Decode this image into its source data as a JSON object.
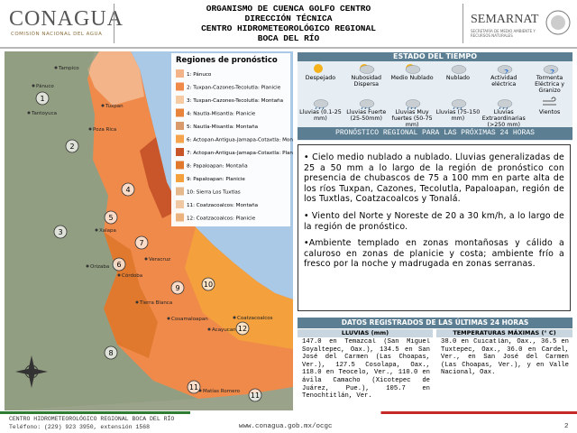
{
  "header": {
    "logo": "CONAGUA",
    "logo_sub": "COMISIÓN NACIONAL DEL AGUA",
    "title_lines": [
      "ORGANISMO DE CUENCA GOLFO CENTRO",
      "DIRECCIÓN TÉCNICA",
      "CENTRO HIDROMETEOROLÓGICO REGIONAL",
      "BOCA DEL RÍO"
    ],
    "semarnat": "SEMARNAT",
    "semarnat_sub": "SECRETARÍA DE MEDIO AMBIENTE Y RECURSOS NATURALES"
  },
  "map": {
    "legend_title": "Regiones de pronóstico",
    "legend": [
      {
        "label": "1: Pánuco",
        "color": "#f3b48a"
      },
      {
        "label": "2: Tuxpan-Cazones-Tecolutla: Planicie",
        "color": "#f08a4b"
      },
      {
        "label": "3: Tuxpan-Cazones-Tecolutla: Montaña",
        "color": "#f6caa2"
      },
      {
        "label": "4: Nautla-Misantla: Planicie",
        "color": "#e9843c"
      },
      {
        "label": "5: Nautla-Misantla: Montaña",
        "color": "#d99a6c"
      },
      {
        "label": "6: Actopan-Antigua-Jamapa-Cotaxtla: Montaña",
        "color": "#f5a34d"
      },
      {
        "label": "7: Actopan-Antigua-Jamapa-Cotaxtla: Planicie",
        "color": "#c8562a"
      },
      {
        "label": "8: Papaloapan: Montaña",
        "color": "#e0792e"
      },
      {
        "label": "9: Papaloapan: Planicie",
        "color": "#f4a03c"
      },
      {
        "label": "10: Sierra Los Tuxtlas",
        "color": "#e6b98c"
      },
      {
        "label": "11: Coatzacoalcos: Montaña",
        "color": "#f0c9a4"
      },
      {
        "label": "12: Coatzacoalcos: Planicie",
        "color": "#ecb27e"
      }
    ],
    "markers": [
      "1",
      "2",
      "3",
      "4",
      "5",
      "6",
      "7",
      "8",
      "9",
      "10",
      "11",
      "12",
      "11"
    ],
    "places": [
      "Tampico",
      "Pánuco",
      "Tantoyuca",
      "Tuxpan",
      "Poza Rica",
      "Xalapa",
      "Veracruz",
      "Orizaba",
      "Córdoba",
      "Tierra Blanca",
      "Cosamaloapan",
      "Coatzacoalcos",
      "Acayucan",
      "Matías Romero"
    ]
  },
  "weather": {
    "title": "ESTADO DEL TIEMPO",
    "items": [
      "Despejado",
      "Nubosidad Dispersa",
      "Medio Nublado",
      "Nublado",
      "Actividad eléctrica",
      "Tormenta Eléctrica y Granizo",
      "Lluvias (0.1-25 mm)",
      "Lluvias Fuerte (25-50mm)",
      "Lluvias Muy fuertes (50-75 mm)",
      "Lluvias (75-150 mm)",
      "Lluvias Extraordinarias (>250 mm)",
      "Vientos"
    ],
    "forecast_title": "PRONÓSTICO REGIONAL PARA LAS PRÓXIMAS 24 HORAS"
  },
  "forecast": [
    "• Cielo medio nublado a nublado. Lluvias generalizadas de 25 a 50 mm a lo largo de la región de pronóstico con presencia de chubascos de 75 a 100 mm en parte alta de los ríos Tuxpan, Cazones, Tecolutla, Papaloapan, región de los Tuxtlas, Coatzacoalcos y Tonalá.",
    "• Viento del Norte y Noreste de 20 a 30 km/h, a lo largo de la región de pronóstico.",
    "•Ambiente templado en zonas montañosas y cálido a caluroso en zonas de planicie y costa; ambiente frío a fresco por la noche y madrugada en zonas serranas."
  ],
  "records": {
    "title": "DATOS REGISTRADOS DE LAS ÚLTIMAS 24 HORAS",
    "rain_header": "LLUVIAS (mm)",
    "temp_header": "TEMPERATURAS MÁXIMAS (° C)",
    "rain": "147.0 en Temazcal (San Miguel Soyaltepec, Oax.), 134.5 en San José del Carmen (Las Choapas, Ver.), 127.5 Cosolapa, Oax., 118.0 en Teocelo, Ver., 110.0 en ávila Camacho (Xicotepec de Juárez, Pue.), 105.7 en Tenochtitlán, Ver.",
    "temp": "38.0 en Cuicatlán, Oax., 36.5 en Tuxtepec, Oax., 36.0 en Cardel, Ver., en San José del Carmen (Las Choapas, Ver.), y en Valle Nacional, Oax."
  },
  "footer": {
    "center": "CENTRO HIDROMETEOROLÓGICO REGIONAL BOCA DEL RÍO",
    "phone": "Teléfono: (229) 923 3950, extensión 1568",
    "url": "www.conagua.gob.mx/ocgc",
    "page": "2"
  }
}
